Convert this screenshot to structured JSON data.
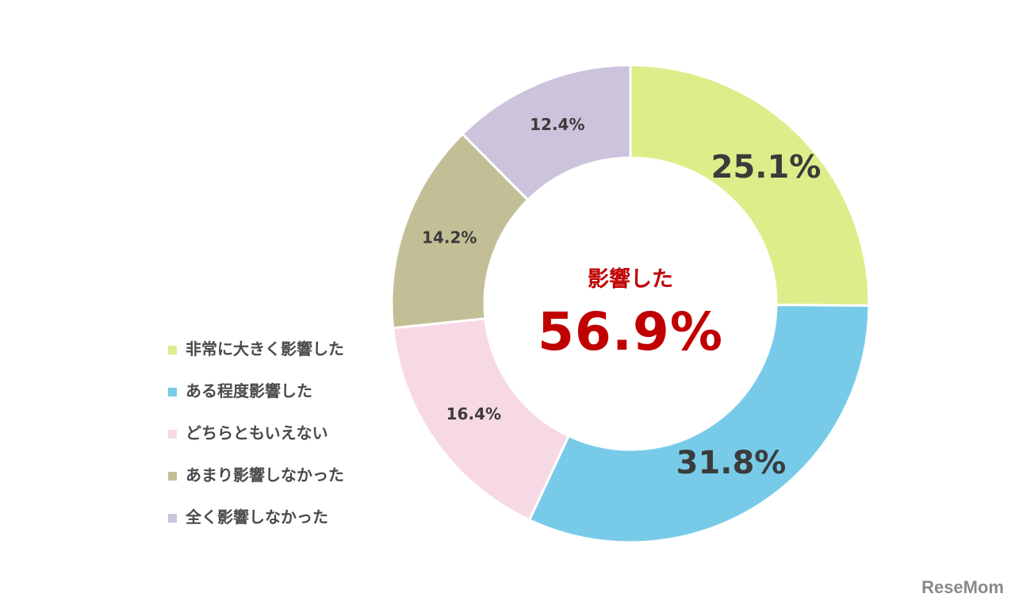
{
  "chart_data": {
    "type": "pie",
    "subtype": "donut",
    "title": "",
    "categories": [
      "非常に大きく影響した",
      "ある程度影響した",
      "どちらともいえない",
      "あまり影響しなかった",
      "全く影響しなかった"
    ],
    "values": [
      25.1,
      31.8,
      16.4,
      14.2,
      12.4
    ],
    "labels": [
      "25.1%",
      "31.8%",
      "16.4%",
      "14.2%",
      "12.4%"
    ],
    "colors": [
      "#dcee8a",
      "#78cbe8",
      "#f7d9e6",
      "#c2bf96",
      "#ccc3dc"
    ],
    "legend_position": "left",
    "center_annotation": {
      "title": "影響した",
      "value": "56.9%"
    }
  },
  "legend": {
    "items": [
      {
        "label": "非常に大きく影響した",
        "color": "#dcee8a"
      },
      {
        "label": "ある程度影響した",
        "color": "#78cbe8"
      },
      {
        "label": "どちらともいえない",
        "color": "#f7d9e6"
      },
      {
        "label": "あまり影響しなかった",
        "color": "#c2bf96"
      },
      {
        "label": "全く影響しなかった",
        "color": "#ccc3dc"
      }
    ]
  },
  "center": {
    "title": "影響した",
    "value": "56.9%",
    "color": "#c00000"
  },
  "watermark": {
    "text": "ReseMom"
  }
}
